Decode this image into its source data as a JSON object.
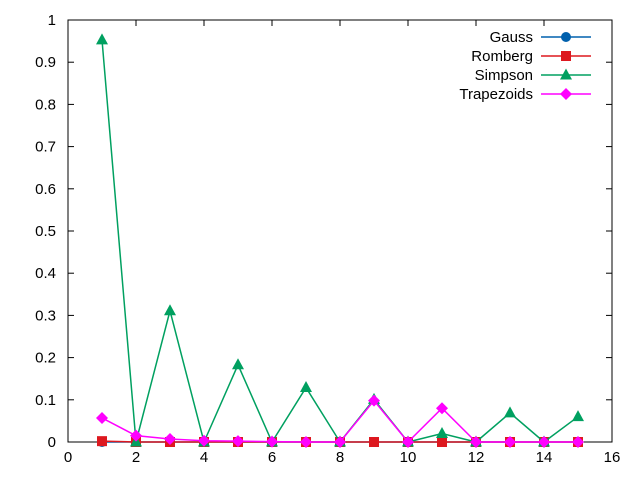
{
  "chart_data": {
    "type": "line",
    "title": "",
    "xlabel": "",
    "ylabel": "",
    "xlim": [
      0,
      16
    ],
    "ylim": [
      0,
      1
    ],
    "x_ticks": [
      "0",
      "2",
      "4",
      "6",
      "8",
      "10",
      "12",
      "14",
      "16"
    ],
    "y_ticks": [
      "0",
      "0.1",
      "0.2",
      "0.3",
      "0.4",
      "0.5",
      "0.6",
      "0.7",
      "0.8",
      "0.9",
      "1"
    ],
    "grid": false,
    "legend_position": "top-right",
    "x": [
      1,
      2,
      3,
      4,
      5,
      6,
      7,
      8,
      9,
      10,
      11,
      12,
      13,
      14,
      15
    ],
    "series": [
      {
        "name": "Gauss",
        "color": "#0060ad",
        "marker": "circle",
        "values": [
          0,
          0,
          0,
          0,
          0,
          0,
          0,
          0,
          0,
          0,
          0,
          0,
          0,
          0,
          0
        ]
      },
      {
        "name": "Romberg",
        "color": "#dd181f",
        "marker": "square",
        "values": [
          0.002,
          0,
          0,
          0,
          0,
          0,
          0,
          0,
          0,
          0,
          0,
          0,
          0,
          0,
          0
        ]
      },
      {
        "name": "Simpson",
        "color": "#00a060",
        "marker": "triangle",
        "values": [
          0.953,
          0.0,
          0.311,
          0.0,
          0.183,
          0.0,
          0.129,
          0.0,
          0.101,
          0.0,
          0.02,
          0.0,
          0.069,
          0.0,
          0.06
        ]
      },
      {
        "name": "Trapezoids",
        "color": "#ff00ff",
        "marker": "diamond",
        "values": [
          0.057,
          0.015,
          0.007,
          0.003,
          0.002,
          0.001,
          0.0,
          0.0,
          0.098,
          0.0,
          0.08,
          0.0,
          0.0,
          0.0,
          0.0
        ]
      }
    ]
  }
}
